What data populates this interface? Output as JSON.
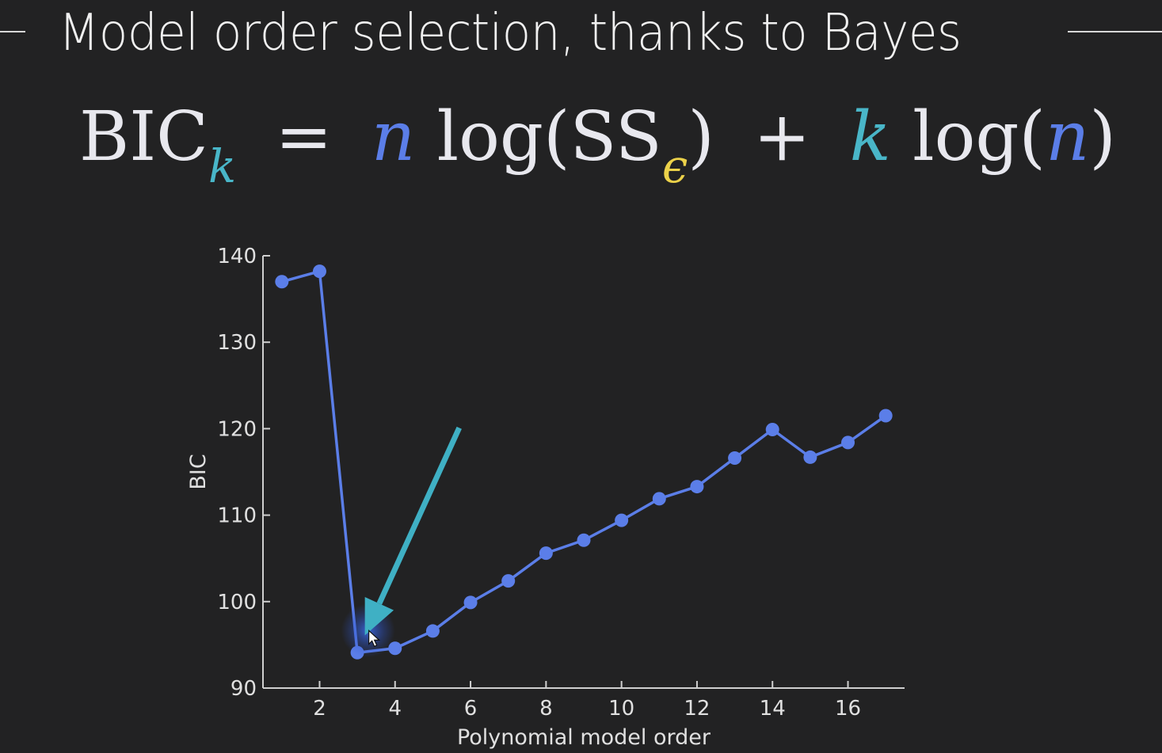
{
  "slide": {
    "title": "Model order selection, thanks to Bayes"
  },
  "formula": {
    "lhs": "BIC",
    "lhs_subscript": "k",
    "equals": "=",
    "n": "n",
    "log1": "log(SS",
    "epsilon": "ϵ",
    "close1": ")",
    "plus": "+",
    "k": "k",
    "log2": "log(",
    "n2": "n",
    "close2": ")"
  },
  "colors": {
    "background": "#222223",
    "series": "#5b7ee8",
    "arrow": "#3fb0c4",
    "axis": "#cfcfcf",
    "n_symbol": "#5b7ee8",
    "k_symbol": "#49b6c8",
    "epsilon_symbol": "#ecd24a"
  },
  "chart_data": {
    "type": "line",
    "title": "",
    "xlabel": "Polynomial model order",
    "ylabel": "BIC",
    "x": [
      1,
      2,
      3,
      4,
      5,
      6,
      7,
      8,
      9,
      10,
      11,
      12,
      13,
      14,
      15,
      16,
      17
    ],
    "series": [
      {
        "values": [
          137.0,
          138.2,
          94.1,
          94.6,
          96.6,
          99.9,
          102.4,
          105.6,
          107.1,
          109.4,
          111.9,
          113.3,
          116.6,
          119.9,
          116.7,
          118.4,
          121.5
        ]
      }
    ],
    "xlim": [
      0.5,
      17.5
    ],
    "ylim": [
      90,
      140
    ],
    "xticks": [
      2,
      4,
      6,
      8,
      10,
      12,
      14,
      16
    ],
    "yticks": [
      90,
      100,
      110,
      120,
      130,
      140
    ],
    "grid": false,
    "legend": "none",
    "annotations": [
      {
        "type": "arrow",
        "from": [
          5.7,
          120.1
        ],
        "to": [
          3.2,
          96.1
        ],
        "description": "points to minimum at order 3"
      }
    ]
  }
}
